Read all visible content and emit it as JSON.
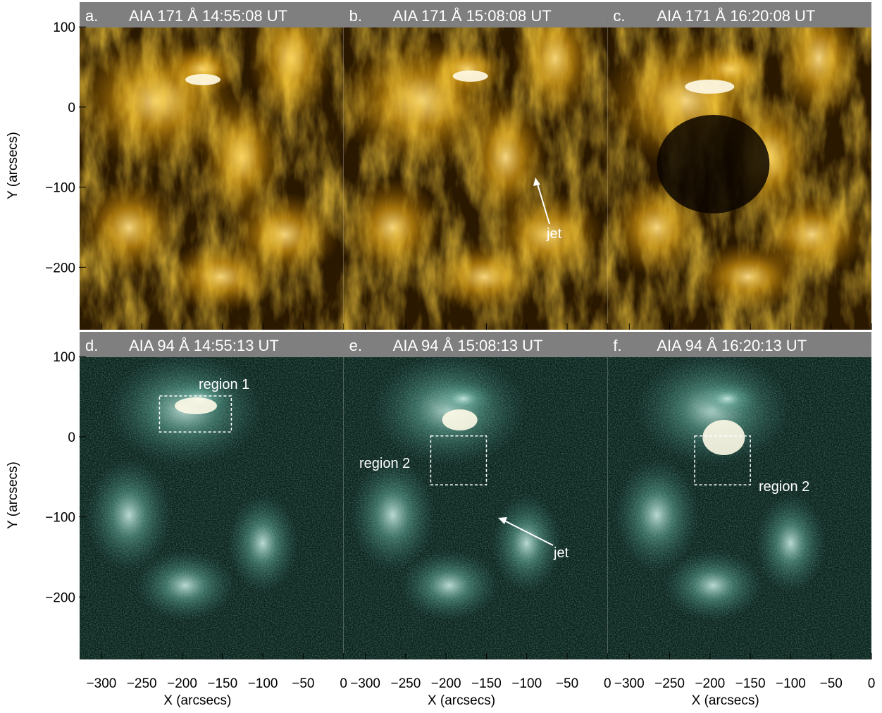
{
  "figure": {
    "ylabel": "Y (arcsecs)",
    "xlabel": "X (arcsecs)",
    "xlim": [
      -327,
      0
    ],
    "xticks": [
      {
        "value": -300,
        "label": "−300"
      },
      {
        "value": -250,
        "label": "−250"
      },
      {
        "value": -200,
        "label": "−200"
      },
      {
        "value": -150,
        "label": "−150"
      },
      {
        "value": -100,
        "label": "−100"
      },
      {
        "value": -50,
        "label": "−50"
      },
      0
    ],
    "ylim": [
      -278,
      131
    ],
    "yticks": [
      100,
      0,
      {
        "value": -100,
        "label": "−100"
      },
      {
        "value": -200,
        "label": "−200"
      }
    ],
    "panels": [
      {
        "letter": "a.",
        "title": "AIA 171 Å 14:55:08 UT"
      },
      {
        "letter": "b.",
        "title": "AIA 171 Å 15:08:08 UT"
      },
      {
        "letter": "c.",
        "title": "AIA 171 Å 16:20:08 UT"
      },
      {
        "letter": "d.",
        "title": "AIA 94 Å 14:55:13 UT"
      },
      {
        "letter": "e.",
        "title": "AIA 94 Å 15:08:13 UT"
      },
      {
        "letter": "f.",
        "title": "AIA 94 Å 16:20:13 UT"
      }
    ],
    "annotations": {
      "jet_b": "jet",
      "jet_e": "jet",
      "region1_d": "region 1",
      "region2_e": "region 2",
      "region2_f": "region 2"
    },
    "boxes": [
      {
        "panel": 3,
        "x": [
          -228,
          -139
        ],
        "y": [
          6,
          51
        ]
      },
      {
        "panel": 4,
        "x": [
          -219,
          -150
        ],
        "y": [
          -60,
          1
        ]
      },
      {
        "panel": 5,
        "x": [
          -219,
          -150
        ],
        "y": [
          -60,
          1
        ]
      }
    ]
  }
}
